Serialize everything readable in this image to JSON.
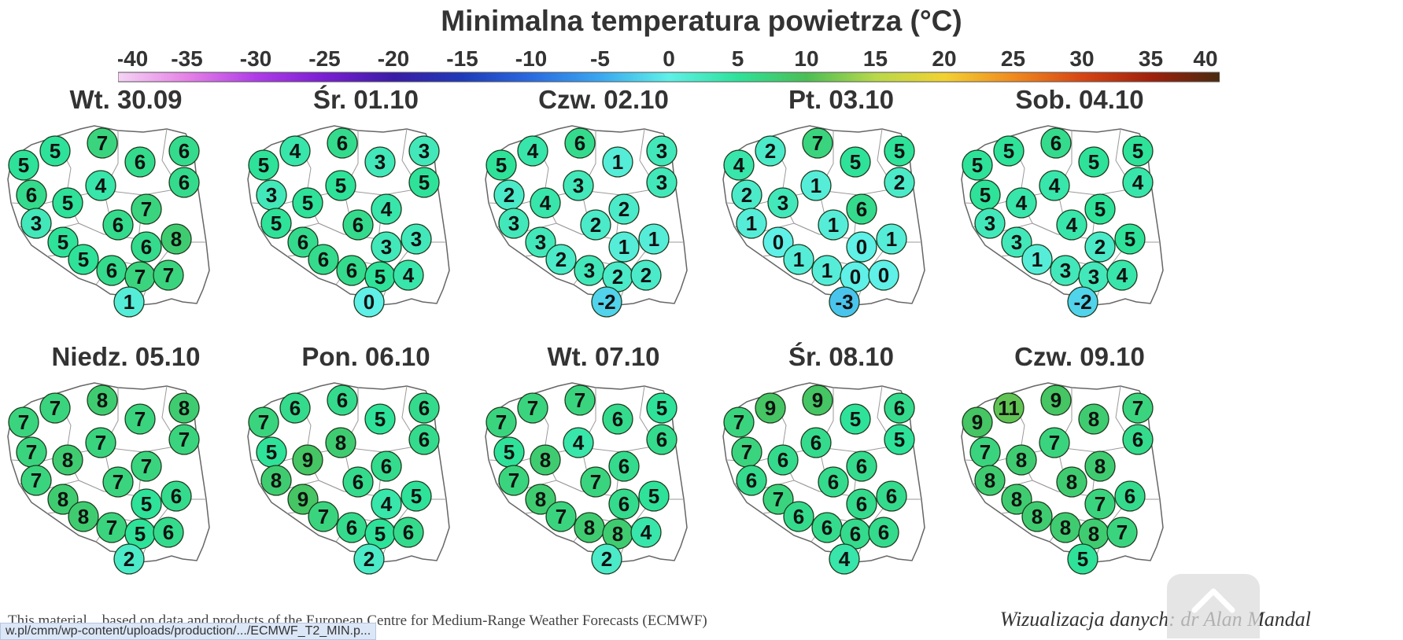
{
  "title": "Minimalna temperatura powietrza (°C)",
  "colorbar": {
    "ticks": [
      "-40",
      "-35",
      "-30",
      "-25",
      "-20",
      "-15",
      "-10",
      "-5",
      "0",
      "5",
      "10",
      "15",
      "20",
      "25",
      "30",
      "35",
      "40"
    ],
    "stops": [
      {
        "v": -40,
        "c": "#f4d4f4"
      },
      {
        "v": -35,
        "c": "#e682e6"
      },
      {
        "v": -30,
        "c": "#b03ce8"
      },
      {
        "v": -25,
        "c": "#7a1ed2"
      },
      {
        "v": -20,
        "c": "#3a1ca6"
      },
      {
        "v": -15,
        "c": "#1f3ab8"
      },
      {
        "v": -10,
        "c": "#2a6ae0"
      },
      {
        "v": -5,
        "c": "#3aa7f0"
      },
      {
        "v": 0,
        "c": "#5ff0e8"
      },
      {
        "v": 5,
        "c": "#2ee29a"
      },
      {
        "v": 10,
        "c": "#4bbe55"
      },
      {
        "v": 15,
        "c": "#b8d84a"
      },
      {
        "v": 20,
        "c": "#f2d232"
      },
      {
        "v": 25,
        "c": "#f08a1e"
      },
      {
        "v": 30,
        "c": "#d64614"
      },
      {
        "v": 35,
        "c": "#a0200c"
      },
      {
        "v": 40,
        "c": "#4a2a10"
      }
    ]
  },
  "panels": [
    {
      "date": "Wt. 30.09",
      "values": [
        5,
        7,
        5,
        6,
        6,
        4,
        6,
        6,
        5,
        7,
        3,
        6,
        5,
        6,
        8,
        5,
        6,
        7,
        7,
        1
      ]
    },
    {
      "date": "Śr. 01.10",
      "values": [
        4,
        6,
        5,
        3,
        3,
        5,
        5,
        3,
        5,
        4,
        5,
        6,
        6,
        3,
        3,
        6,
        6,
        5,
        4,
        0
      ]
    },
    {
      "date": "Czw. 02.10",
      "values": [
        4,
        6,
        5,
        1,
        3,
        3,
        3,
        2,
        4,
        2,
        3,
        2,
        3,
        1,
        1,
        2,
        3,
        2,
        2,
        -2
      ]
    },
    {
      "date": "Pt. 03.10",
      "values": [
        2,
        7,
        4,
        5,
        5,
        1,
        2,
        2,
        3,
        6,
        1,
        1,
        0,
        0,
        1,
        1,
        1,
        0,
        0,
        -3
      ]
    },
    {
      "date": "Sob. 04.10",
      "values": [
        5,
        6,
        5,
        5,
        5,
        4,
        4,
        5,
        4,
        5,
        3,
        4,
        3,
        2,
        5,
        1,
        3,
        3,
        4,
        -2
      ]
    },
    {
      "date": "Niedz. 05.10",
      "values": [
        7,
        8,
        7,
        7,
        8,
        7,
        7,
        7,
        8,
        7,
        7,
        7,
        8,
        5,
        6,
        8,
        7,
        5,
        6,
        2
      ]
    },
    {
      "date": "Pon. 06.10",
      "values": [
        6,
        6,
        7,
        5,
        6,
        8,
        6,
        5,
        9,
        6,
        8,
        6,
        9,
        4,
        5,
        7,
        6,
        5,
        6,
        2
      ]
    },
    {
      "date": "Wt. 07.10",
      "values": [
        7,
        7,
        7,
        6,
        5,
        4,
        6,
        5,
        8,
        6,
        7,
        7,
        8,
        6,
        5,
        7,
        8,
        8,
        4,
        2
      ]
    },
    {
      "date": "Śr. 08.10",
      "values": [
        9,
        9,
        7,
        5,
        6,
        6,
        5,
        7,
        6,
        6,
        6,
        6,
        7,
        6,
        6,
        6,
        6,
        6,
        6,
        4
      ]
    },
    {
      "date": "Czw. 09.10",
      "values": [
        11,
        9,
        9,
        8,
        7,
        7,
        6,
        7,
        8,
        8,
        8,
        8,
        8,
        7,
        6,
        8,
        8,
        8,
        7,
        5
      ]
    }
  ],
  "footer": {
    "source": "This material... based on data and products of the European Centre for Medium-Range Weather Forecasts (ECMWF)",
    "credit": "Wizualizacja danych: dr Alan Mandal",
    "status_url": "w.pl/cmm/wp-content/uploads/production/.../ECMWF_T2_MIN.p..."
  }
}
